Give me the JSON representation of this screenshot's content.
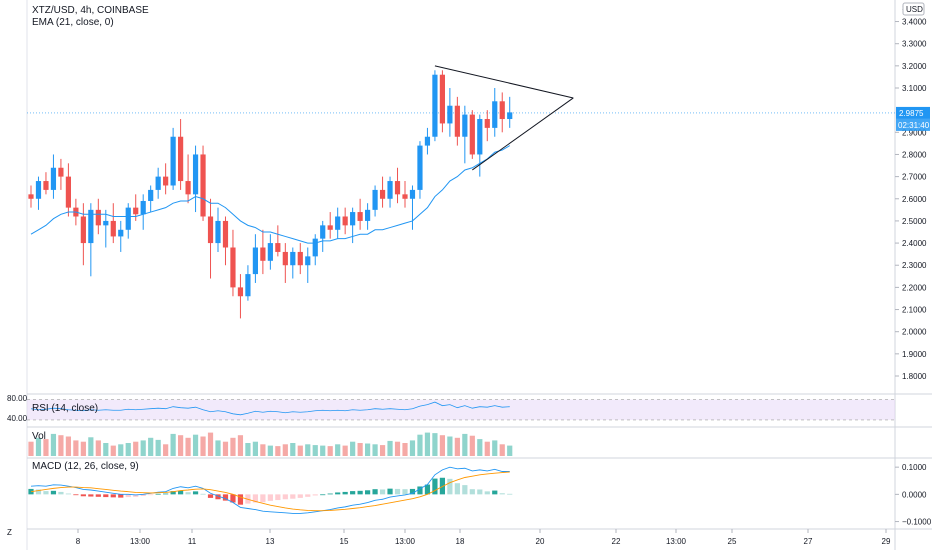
{
  "header": {
    "symbol": "XTZ/USD, 4h, COINBASE",
    "ema_label": "EMA (21, close, 0)",
    "currency": "USD"
  },
  "price_axis": {
    "ticks": [
      "3.4000",
      "3.3000",
      "3.2000",
      "3.1000",
      "2.9000",
      "2.8000",
      "2.7000",
      "2.6000",
      "2.5000",
      "2.4000",
      "2.3000",
      "2.2000",
      "2.1000",
      "2.0000",
      "1.9000",
      "1.8000"
    ],
    "top_partial": "3",
    "last_price": "2.9875",
    "countdown": "02:31:40"
  },
  "time_axis": {
    "labels": [
      "8",
      "13:00",
      "11",
      "13",
      "15",
      "13:00",
      "18",
      "20",
      "22",
      "13:00",
      "25",
      "27",
      "29"
    ],
    "corner": "Z"
  },
  "rsi": {
    "label": "RSI (14, close)",
    "upper": "80.00",
    "lower": "40.00"
  },
  "volume": {
    "label": "Vol"
  },
  "macd": {
    "label": "MACD (12, 26, close, 9)",
    "ticks": [
      "0.1000",
      "0.0000",
      "−0.1000"
    ]
  },
  "colors": {
    "up": "#26a69a",
    "down": "#ef5350",
    "ema": "#2196f3",
    "signal": "#ff9800",
    "up_body": "#2196f3",
    "rsi_band": "#e8d8f8"
  },
  "chart_data": {
    "type": "candlestick",
    "ylim": [
      1.72,
      3.48
    ],
    "last_price": 2.9875,
    "candles": [
      [
        2.62,
        2.66,
        2.56,
        2.6
      ],
      [
        2.6,
        2.7,
        2.55,
        2.68
      ],
      [
        2.68,
        2.72,
        2.62,
        2.64
      ],
      [
        2.64,
        2.8,
        2.6,
        2.74
      ],
      [
        2.74,
        2.78,
        2.64,
        2.7
      ],
      [
        2.7,
        2.76,
        2.52,
        2.56
      ],
      [
        2.56,
        2.6,
        2.48,
        2.52
      ],
      [
        2.52,
        2.58,
        2.3,
        2.4
      ],
      [
        2.4,
        2.58,
        2.25,
        2.55
      ],
      [
        2.55,
        2.6,
        2.44,
        2.48
      ],
      [
        2.48,
        2.55,
        2.38,
        2.5
      ],
      [
        2.5,
        2.58,
        2.4,
        2.43
      ],
      [
        2.43,
        2.5,
        2.36,
        2.46
      ],
      [
        2.46,
        2.58,
        2.42,
        2.56
      ],
      [
        2.56,
        2.62,
        2.5,
        2.53
      ],
      [
        2.53,
        2.62,
        2.46,
        2.59
      ],
      [
        2.59,
        2.66,
        2.54,
        2.64
      ],
      [
        2.64,
        2.74,
        2.6,
        2.7
      ],
      [
        2.7,
        2.76,
        2.62,
        2.66
      ],
      [
        2.66,
        2.92,
        2.64,
        2.88
      ],
      [
        2.88,
        2.96,
        2.64,
        2.68
      ],
      [
        2.68,
        2.8,
        2.58,
        2.62
      ],
      [
        2.62,
        2.84,
        2.54,
        2.8
      ],
      [
        2.8,
        2.84,
        2.5,
        2.52
      ],
      [
        2.52,
        2.6,
        2.24,
        2.4
      ],
      [
        2.4,
        2.56,
        2.36,
        2.5
      ],
      [
        2.5,
        2.52,
        2.3,
        2.38
      ],
      [
        2.38,
        2.46,
        2.16,
        2.2
      ],
      [
        2.2,
        2.26,
        2.06,
        2.16
      ],
      [
        2.16,
        2.3,
        2.14,
        2.26
      ],
      [
        2.26,
        2.44,
        2.22,
        2.38
      ],
      [
        2.38,
        2.46,
        2.26,
        2.32
      ],
      [
        2.32,
        2.44,
        2.28,
        2.4
      ],
      [
        2.4,
        2.48,
        2.34,
        2.36
      ],
      [
        2.36,
        2.4,
        2.22,
        2.3
      ],
      [
        2.3,
        2.38,
        2.24,
        2.36
      ],
      [
        2.36,
        2.4,
        2.26,
        2.3
      ],
      [
        2.3,
        2.38,
        2.22,
        2.34
      ],
      [
        2.34,
        2.44,
        2.3,
        2.42
      ],
      [
        2.42,
        2.5,
        2.36,
        2.48
      ],
      [
        2.48,
        2.54,
        2.42,
        2.46
      ],
      [
        2.46,
        2.56,
        2.42,
        2.52
      ],
      [
        2.52,
        2.56,
        2.44,
        2.48
      ],
      [
        2.48,
        2.56,
        2.4,
        2.54
      ],
      [
        2.54,
        2.6,
        2.46,
        2.5
      ],
      [
        2.5,
        2.58,
        2.46,
        2.55
      ],
      [
        2.55,
        2.66,
        2.52,
        2.64
      ],
      [
        2.64,
        2.7,
        2.56,
        2.6
      ],
      [
        2.6,
        2.7,
        2.56,
        2.68
      ],
      [
        2.68,
        2.74,
        2.58,
        2.62
      ],
      [
        2.62,
        2.68,
        2.56,
        2.6
      ],
      [
        2.6,
        2.66,
        2.46,
        2.64
      ],
      [
        2.64,
        2.86,
        2.6,
        2.84
      ],
      [
        2.84,
        2.92,
        2.8,
        2.88
      ],
      [
        2.88,
        3.18,
        2.86,
        3.16
      ],
      [
        3.16,
        3.18,
        2.9,
        2.94
      ],
      [
        2.94,
        3.1,
        2.88,
        3.02
      ],
      [
        3.02,
        3.06,
        2.84,
        2.88
      ],
      [
        2.88,
        3.02,
        2.76,
        2.98
      ],
      [
        2.98,
        3.0,
        2.78,
        2.8
      ],
      [
        2.8,
        2.98,
        2.7,
        2.96
      ],
      [
        2.96,
        3.0,
        2.86,
        2.92
      ],
      [
        2.92,
        3.1,
        2.88,
        3.04
      ],
      [
        3.04,
        3.08,
        2.9,
        2.96
      ],
      [
        2.96,
        3.06,
        2.92,
        2.99
      ]
    ],
    "ema": [
      2.44,
      2.46,
      2.48,
      2.51,
      2.53,
      2.54,
      2.54,
      2.53,
      2.53,
      2.53,
      2.53,
      2.52,
      2.52,
      2.52,
      2.52,
      2.53,
      2.54,
      2.55,
      2.56,
      2.58,
      2.59,
      2.59,
      2.61,
      2.6,
      2.58,
      2.58,
      2.56,
      2.53,
      2.5,
      2.48,
      2.47,
      2.45,
      2.45,
      2.44,
      2.43,
      2.42,
      2.41,
      2.4,
      2.4,
      2.41,
      2.41,
      2.42,
      2.42,
      2.43,
      2.44,
      2.44,
      2.46,
      2.46,
      2.47,
      2.48,
      2.49,
      2.5,
      2.53,
      2.56,
      2.61,
      2.64,
      2.68,
      2.7,
      2.73,
      2.74,
      2.76,
      2.78,
      2.81,
      2.82,
      2.84
    ],
    "rsi": [
      62,
      60,
      61,
      63,
      62,
      60,
      59,
      58,
      60,
      59,
      60,
      59,
      59,
      61,
      60,
      61,
      62,
      63,
      62,
      66,
      64,
      63,
      65,
      60,
      56,
      58,
      56,
      52,
      50,
      53,
      57,
      55,
      57,
      56,
      54,
      56,
      55,
      56,
      58,
      59,
      58,
      59,
      58,
      60,
      59,
      60,
      62,
      61,
      62,
      61,
      60,
      62,
      67,
      70,
      75,
      68,
      70,
      64,
      68,
      63,
      66,
      65,
      68,
      65,
      66
    ],
    "volume": [
      0.55,
      0.7,
      0.65,
      0.85,
      0.8,
      0.75,
      0.6,
      0.55,
      0.72,
      0.6,
      0.5,
      0.4,
      0.45,
      0.5,
      0.55,
      0.6,
      0.7,
      0.62,
      0.45,
      0.85,
      0.8,
      0.7,
      0.82,
      0.75,
      0.9,
      0.6,
      0.55,
      0.7,
      0.8,
      0.5,
      0.55,
      0.45,
      0.4,
      0.38,
      0.45,
      0.5,
      0.4,
      0.45,
      0.42,
      0.4,
      0.38,
      0.45,
      0.4,
      0.55,
      0.5,
      0.48,
      0.45,
      0.42,
      0.58,
      0.55,
      0.5,
      0.6,
      0.82,
      0.9,
      0.88,
      0.8,
      0.75,
      0.7,
      0.85,
      0.78,
      0.65,
      0.55,
      0.6,
      0.45,
      0.4
    ],
    "macd": [
      0.03,
      0.032,
      0.03,
      0.035,
      0.034,
      0.03,
      0.025,
      0.018,
      0.016,
      0.012,
      0.008,
      0.004,
      0.0,
      0.0,
      -0.002,
      0.0,
      0.004,
      0.008,
      0.01,
      0.022,
      0.028,
      0.024,
      0.03,
      0.022,
      0.004,
      -0.006,
      -0.016,
      -0.03,
      -0.048,
      -0.052,
      -0.056,
      -0.062,
      -0.064,
      -0.066,
      -0.068,
      -0.07,
      -0.07,
      -0.068,
      -0.064,
      -0.06,
      -0.056,
      -0.05,
      -0.046,
      -0.04,
      -0.036,
      -0.03,
      -0.022,
      -0.018,
      -0.01,
      -0.006,
      -0.002,
      0.004,
      0.02,
      0.036,
      0.072,
      0.09,
      0.1,
      0.094,
      0.096,
      0.086,
      0.09,
      0.086,
      0.092,
      0.084,
      0.084
    ],
    "signal": [
      0.01,
      0.014,
      0.018,
      0.022,
      0.025,
      0.027,
      0.027,
      0.025,
      0.024,
      0.021,
      0.018,
      0.015,
      0.012,
      0.01,
      0.007,
      0.006,
      0.005,
      0.006,
      0.007,
      0.01,
      0.014,
      0.016,
      0.019,
      0.02,
      0.017,
      0.012,
      0.007,
      0.0,
      -0.01,
      -0.018,
      -0.026,
      -0.033,
      -0.04,
      -0.045,
      -0.05,
      -0.054,
      -0.057,
      -0.059,
      -0.06,
      -0.06,
      -0.059,
      -0.057,
      -0.055,
      -0.052,
      -0.049,
      -0.045,
      -0.041,
      -0.036,
      -0.031,
      -0.026,
      -0.021,
      -0.016,
      -0.009,
      0.0,
      0.014,
      0.029,
      0.043,
      0.053,
      0.062,
      0.067,
      0.072,
      0.075,
      0.078,
      0.08,
      0.082
    ],
    "triangle": {
      "apex_index": 72.5,
      "apex_price": 3.055,
      "upper_start": [
        54,
        3.2
      ],
      "lower_start": [
        59,
        2.73
      ]
    },
    "rsi_range": [
      30,
      85
    ],
    "macd_range": [
      -0.12,
      0.13
    ]
  }
}
